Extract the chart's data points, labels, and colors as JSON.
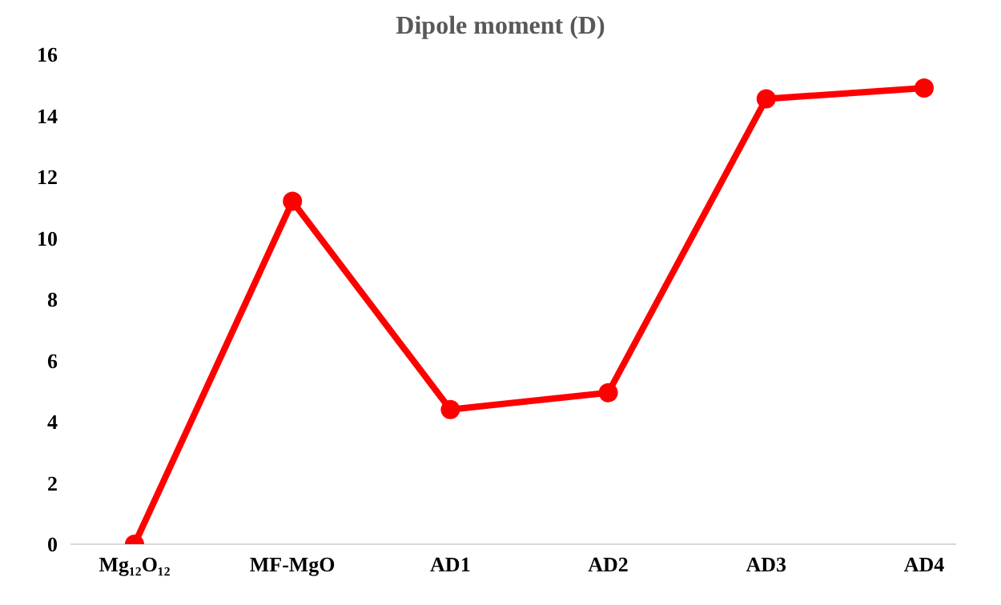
{
  "chart_data": {
    "type": "line",
    "title": "Dipole moment (D)",
    "categories": [
      "Mg₁₂O₁₂",
      "MF-MgO",
      "AD1",
      "AD2",
      "AD3",
      "AD4"
    ],
    "series": [
      {
        "color": "#ff0000",
        "values": [
          0,
          11.2,
          4.4,
          4.95,
          14.55,
          14.9
        ]
      }
    ],
    "ylim": [
      0,
      16
    ],
    "yticks": [
      0,
      2,
      4,
      6,
      8,
      10,
      12,
      14,
      16
    ],
    "grid": false,
    "legend": false,
    "marker": "circle",
    "line_style": "solid"
  }
}
